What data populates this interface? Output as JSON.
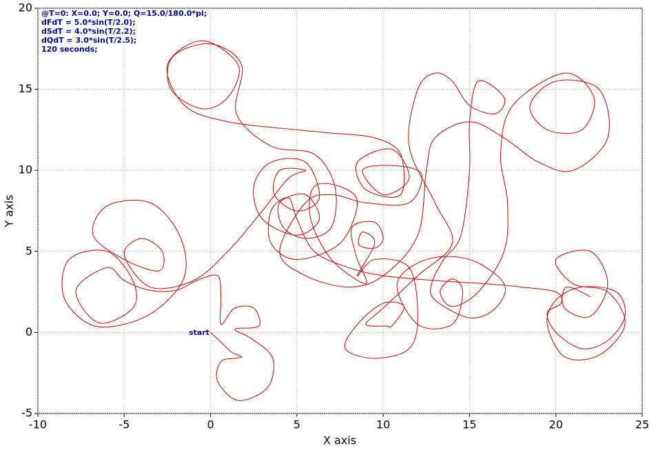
{
  "chart_data": {
    "type": "line",
    "annotations": [
      "@T=0:  X=0.0;  Y=0.0;  Q=15.0/180.0*pi;",
      "dFdT = 5.0*sin(T/2.0);",
      "dSdT = 4.0*sin(T/2.2);",
      "dQdT = 3.0*sin(T/2.5);",
      "120 seconds;"
    ],
    "start_label": "start",
    "xlabel": "X axis",
    "ylabel": "Y axis",
    "xlim": [
      -10,
      25
    ],
    "xticks": [
      -10,
      -5,
      0,
      5,
      10,
      15,
      20,
      25
    ],
    "ylim": [
      -5,
      20
    ],
    "yticks": [
      -5,
      0,
      5,
      10,
      15,
      20
    ],
    "grid": true,
    "x": [
      0,
      0.6,
      1.2,
      1.8,
      1.4,
      0.6,
      0.4,
      1.6,
      3.3,
      3.6,
      2.4,
      1.4,
      2.8,
      2.5,
      1.4,
      0.6,
      0.6,
      0.4,
      -0.8,
      -2,
      -3.5,
      -5,
      -6,
      -7.8,
      -6.5,
      -4.5,
      -4.5,
      -6,
      -8.2,
      -8.5,
      -7,
      -5,
      -3,
      -1.5,
      -1.8,
      -3.5,
      -6,
      -6.8,
      -5,
      -3,
      -2.8,
      -4,
      -5,
      -3.5,
      -1,
      1,
      3,
      4.5,
      5.5,
      4,
      3.7,
      5,
      6.3,
      5.5,
      3.5,
      2.5,
      3,
      5,
      6.3,
      5.5,
      4,
      4.2,
      5.5,
      7,
      7.2,
      6,
      3.5,
      1.5,
      1.8,
      0,
      -2.2,
      -2.3,
      -0.5,
      1,
      1.6,
      -0.5,
      -2.5,
      -1.5,
      1,
      5,
      7,
      9.5,
      11,
      11,
      9,
      8.5,
      10.5,
      11.5,
      10,
      8.8,
      10.5,
      12.2,
      11.5,
      9,
      7,
      5.5,
      4,
      5.5,
      8,
      10,
      12,
      12.5,
      13,
      15,
      17,
      19,
      21,
      23,
      22.5,
      20,
      18.5,
      19.5,
      21.5,
      22.2,
      20.5,
      17.5,
      16.8,
      17.2,
      17,
      15.5,
      14,
      13.3,
      14,
      14.6,
      14,
      12,
      10.8,
      12.5,
      15,
      17,
      16.5,
      15,
      13,
      12.8,
      13.5,
      14.5,
      15,
      15,
      15.5,
      17,
      16.5,
      15,
      14,
      13,
      12,
      11.5,
      13,
      14,
      12,
      10,
      9,
      10.2,
      10.5,
      11.2,
      10,
      8.5,
      7.8,
      9.5,
      11.5,
      12,
      11.5,
      9.5,
      8.5,
      9.5,
      8.8,
      8.6,
      9.5,
      10,
      9.5,
      8.2,
      8.4,
      9,
      7,
      5.8,
      6,
      7.5,
      8.5,
      7.5,
      5,
      3.5,
      3.5,
      4.5,
      5,
      6,
      8,
      10,
      13,
      16,
      18,
      20,
      20.3,
      19.5,
      20,
      21.5,
      23,
      24,
      23.5,
      21.5,
      20,
      19.5,
      20.5,
      22.5,
      24,
      23,
      21,
      20,
      22,
      23,
      22,
      20.5,
      20.6,
      22
    ],
    "series": [
      {
        "color": "#cc0000",
        "values": [
          0,
          -0.6,
          -1.2,
          -1.5,
          -1.6,
          -1.8,
          -3,
          -4.2,
          -3.4,
          -1.6,
          -0.4,
          0.2,
          0.4,
          1.5,
          1.5,
          0.5,
          2.2,
          3.5,
          3.2,
          2.6,
          2.6,
          3.2,
          4,
          2.6,
          0.6,
          1.5,
          3.2,
          5,
          4.5,
          2.2,
          0.5,
          0.5,
          1.5,
          3.5,
          6,
          8,
          7.8,
          6,
          4.5,
          3.8,
          5,
          5.8,
          4.8,
          2.8,
          3.2,
          5,
          7.5,
          9.5,
          10,
          10,
          8.5,
          7.5,
          8.3,
          10.5,
          10.5,
          9,
          7,
          6,
          7,
          8.5,
          8,
          6.5,
          5.8,
          6.5,
          9,
          11,
          11.5,
          13.5,
          16.5,
          17.8,
          17,
          15,
          13.8,
          14.5,
          16.5,
          18,
          16.5,
          14,
          13,
          12.5,
          12.3,
          12,
          11,
          8.5,
          8.8,
          10.5,
          11.3,
          9.5,
          8.5,
          10,
          10.3,
          9.8,
          8,
          8,
          8.5,
          8,
          5,
          3.5,
          2.8,
          3.5,
          6,
          10,
          12,
          13,
          12,
          10.5,
          10,
          12,
          15,
          15.5,
          14,
          12.5,
          12.5,
          14.5,
          16,
          14,
          11,
          8,
          5,
          2.5,
          1.6,
          2.5,
          3.3,
          2.5,
          0.5,
          0.5,
          3,
          4.5,
          4.5,
          3,
          1.5,
          0.9,
          2,
          3,
          4.5,
          6,
          10,
          13,
          15.5,
          14.5,
          13.5,
          14,
          15.5,
          16,
          15,
          11.5,
          8,
          5.5,
          3.5,
          1.5,
          0.5,
          0.4,
          0.4,
          1.6,
          1.8,
          0.5,
          -1,
          -1.6,
          -1,
          1,
          4,
          4.5,
          3.5,
          5.5,
          6.2,
          5.4,
          5.2,
          5.8,
          6.8,
          6.5,
          4.8,
          3,
          4.5,
          7,
          9,
          9,
          8,
          5.5,
          4.5,
          5.5,
          7.5,
          8.3,
          7,
          5,
          4,
          3.5,
          3.2,
          3,
          2.8,
          2.5,
          1.8,
          1.2,
          0,
          -1,
          -0.5,
          1,
          2.5,
          2.8,
          2,
          0.5,
          -1.5,
          -1.4,
          0.5,
          2.5,
          3,
          4.5,
          5,
          3,
          1,
          1.5,
          2.8,
          2.2
        ]
      }
    ]
  }
}
